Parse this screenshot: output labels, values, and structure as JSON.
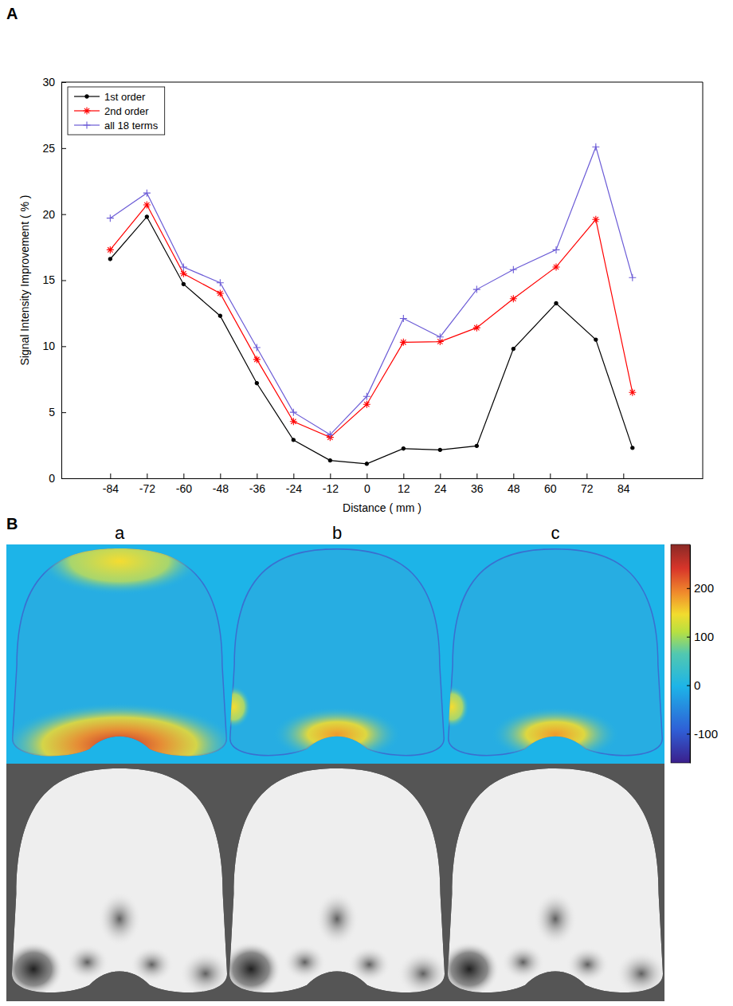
{
  "chart_data": [
    {
      "type": "line",
      "label": "A",
      "x_label": "Distance ( mm )",
      "y_label": "Signal Intensity Improvement ( % )",
      "x": [
        -84,
        -72,
        -60,
        -48,
        -36,
        -24,
        -12,
        0,
        12,
        24,
        36,
        48,
        62,
        75,
        87
      ],
      "series": [
        {
          "name": "1st order",
          "color": "#000000",
          "marker": "dot",
          "line_style": "solid",
          "values": [
            16.6,
            19.8,
            14.7,
            12.3,
            7.2,
            2.9,
            1.35,
            1.1,
            2.25,
            2.15,
            2.45,
            9.8,
            13.25,
            10.5,
            2.3
          ]
        },
        {
          "name": "2nd order",
          "color": "#ff0000",
          "marker": "asterisk",
          "line_style": "solid",
          "values": [
            17.3,
            20.7,
            15.5,
            14.0,
            9.0,
            4.3,
            3.1,
            5.6,
            10.3,
            10.35,
            11.4,
            13.6,
            16.0,
            19.6,
            6.5
          ]
        },
        {
          "name": "all 18 terms",
          "color": "#6b5bd6",
          "marker": "plus",
          "line_style": "solid",
          "values": [
            19.7,
            21.6,
            16.0,
            14.8,
            9.9,
            5.0,
            3.3,
            6.2,
            12.1,
            10.7,
            14.3,
            15.8,
            17.3,
            25.1,
            15.2
          ]
        }
      ],
      "xlim": [
        -100,
        110
      ],
      "xticks": [
        -84,
        -72,
        -60,
        -48,
        -36,
        -24,
        -12,
        0,
        12,
        24,
        36,
        48,
        60,
        72,
        84
      ],
      "ylim": [
        0,
        30
      ],
      "yticks": [
        0,
        5,
        10,
        15,
        20,
        25,
        30
      ],
      "grid": false,
      "legend": "upper left"
    },
    {
      "type": "image",
      "label": "B",
      "panels": [
        "a",
        "b",
        "c"
      ],
      "colorbar": {
        "range": [
          -160,
          290
        ],
        "ticks": [
          200,
          100,
          0,
          -100
        ]
      }
    }
  ]
}
